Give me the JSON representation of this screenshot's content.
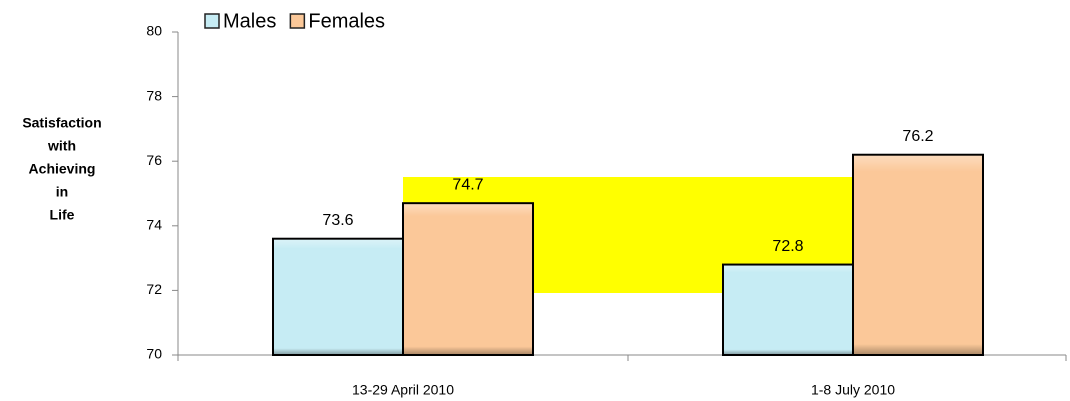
{
  "chart_data": {
    "type": "bar",
    "y_label": [
      "Satisfaction",
      "with",
      "Achieving",
      "in",
      "Life"
    ],
    "categories": [
      "13-29 April 2010",
      "1-8 July 2010"
    ],
    "series": [
      {
        "name": "Males",
        "color": "#c6ecf4",
        "values": [
          73.6,
          72.8
        ]
      },
      {
        "name": "Females",
        "color": "#fbc899",
        "values": [
          74.7,
          76.2
        ]
      }
    ],
    "ylim": [
      70,
      80
    ],
    "yticks": [
      70,
      72,
      74,
      76,
      78,
      80
    ],
    "grid": false,
    "legend": "top-left"
  }
}
